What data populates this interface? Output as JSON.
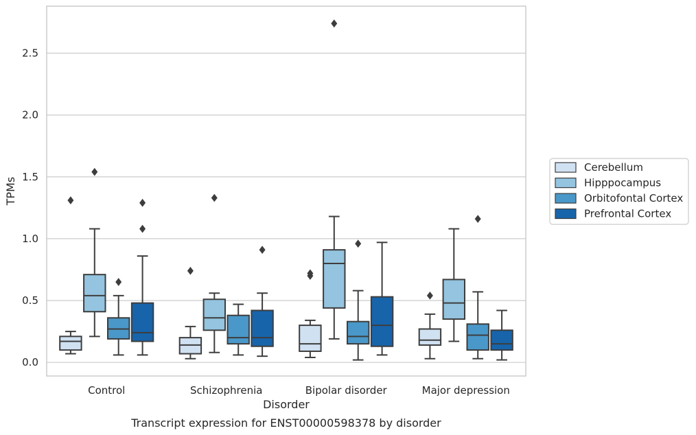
{
  "chart_data": {
    "type": "box",
    "caption": "Transcript expression for ENST00000598378 by disorder",
    "xlabel": "Disorder",
    "ylabel": "TPMs",
    "ylim": [
      -0.11,
      2.88
    ],
    "yticks": [
      0.0,
      0.5,
      1.0,
      1.5,
      2.0,
      2.5
    ],
    "ytick_labels": [
      "0.0",
      "0.5",
      "1.0",
      "1.5",
      "2.0",
      "2.5"
    ],
    "categories": [
      "Control",
      "Schizophrenia",
      "Bipolar disorder",
      "Major depression"
    ],
    "grid": true,
    "legend_position": "right",
    "series": [
      {
        "name": "Cerebellum",
        "color": "#d0e1f2",
        "boxes": [
          {
            "whislo": 0.07,
            "q1": 0.1,
            "med": 0.17,
            "q3": 0.21,
            "whishi": 0.25,
            "fliers": [
              1.31
            ]
          },
          {
            "whislo": 0.03,
            "q1": 0.07,
            "med": 0.14,
            "q3": 0.2,
            "whishi": 0.29,
            "fliers": [
              0.74
            ]
          },
          {
            "whislo": 0.04,
            "q1": 0.09,
            "med": 0.15,
            "q3": 0.3,
            "whishi": 0.34,
            "fliers": [
              0.7,
              0.72
            ]
          },
          {
            "whislo": 0.03,
            "q1": 0.14,
            "med": 0.18,
            "q3": 0.27,
            "whishi": 0.39,
            "fliers": [
              0.54
            ]
          }
        ]
      },
      {
        "name": "Hipppocampus",
        "color": "#94c4df",
        "boxes": [
          {
            "whislo": 0.21,
            "q1": 0.41,
            "med": 0.54,
            "q3": 0.71,
            "whishi": 1.08,
            "fliers": [
              1.54
            ]
          },
          {
            "whislo": 0.08,
            "q1": 0.26,
            "med": 0.36,
            "q3": 0.51,
            "whishi": 0.56,
            "fliers": [
              1.33
            ]
          },
          {
            "whislo": 0.19,
            "q1": 0.44,
            "med": 0.8,
            "q3": 0.91,
            "whishi": 1.18,
            "fliers": [
              2.74
            ]
          },
          {
            "whislo": 0.17,
            "q1": 0.35,
            "med": 0.48,
            "q3": 0.67,
            "whishi": 1.08,
            "fliers": []
          }
        ]
      },
      {
        "name": "Orbitofontal Cortex",
        "color": "#4a98c9",
        "boxes": [
          {
            "whislo": 0.06,
            "q1": 0.19,
            "med": 0.27,
            "q3": 0.36,
            "whishi": 0.54,
            "fliers": [
              0.65
            ]
          },
          {
            "whislo": 0.06,
            "q1": 0.15,
            "med": 0.2,
            "q3": 0.38,
            "whishi": 0.47,
            "fliers": []
          },
          {
            "whislo": 0.02,
            "q1": 0.15,
            "med": 0.21,
            "q3": 0.33,
            "whishi": 0.58,
            "fliers": [
              0.96
            ]
          },
          {
            "whislo": 0.03,
            "q1": 0.1,
            "med": 0.22,
            "q3": 0.31,
            "whishi": 0.57,
            "fliers": [
              1.16
            ]
          }
        ]
      },
      {
        "name": "Prefrontal Cortex",
        "color": "#1764ab",
        "boxes": [
          {
            "whislo": 0.06,
            "q1": 0.17,
            "med": 0.24,
            "q3": 0.48,
            "whishi": 0.86,
            "fliers": [
              1.08,
              1.29
            ]
          },
          {
            "whislo": 0.05,
            "q1": 0.13,
            "med": 0.2,
            "q3": 0.42,
            "whishi": 0.56,
            "fliers": [
              0.91
            ]
          },
          {
            "whislo": 0.06,
            "q1": 0.13,
            "med": 0.3,
            "q3": 0.53,
            "whishi": 0.97,
            "fliers": []
          },
          {
            "whislo": 0.02,
            "q1": 0.1,
            "med": 0.15,
            "q3": 0.26,
            "whishi": 0.42,
            "fliers": []
          }
        ]
      }
    ]
  }
}
